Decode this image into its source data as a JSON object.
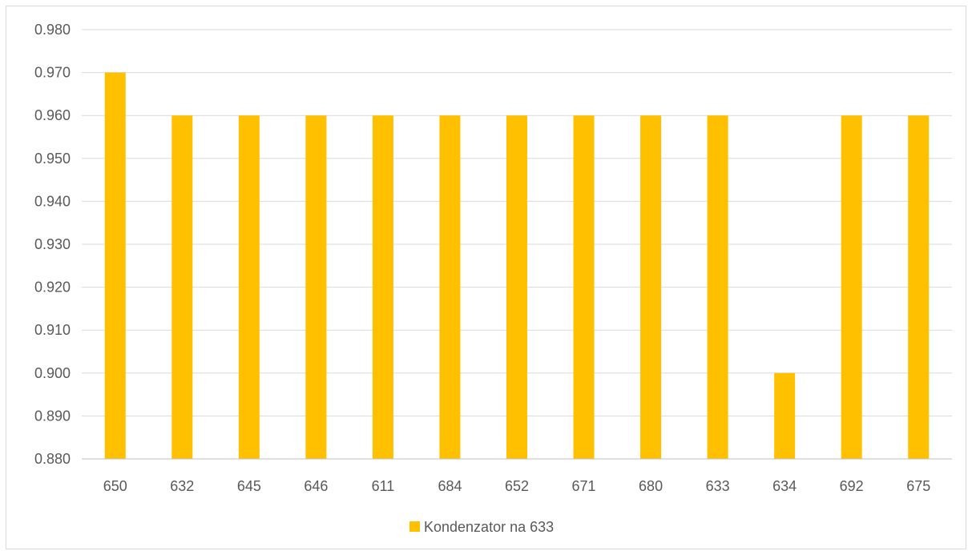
{
  "chart_data": {
    "type": "bar",
    "categories": [
      "650",
      "632",
      "645",
      "646",
      "611",
      "684",
      "652",
      "671",
      "680",
      "633",
      "634",
      "692",
      "675"
    ],
    "series": [
      {
        "name": "Kondenzator na 633",
        "values": [
          0.97,
          0.96,
          0.96,
          0.96,
          0.96,
          0.96,
          0.96,
          0.96,
          0.96,
          0.96,
          0.9,
          0.96,
          0.96
        ]
      }
    ],
    "ylim": [
      0.88,
      0.98
    ],
    "yticks": [
      "0.880",
      "0.890",
      "0.900",
      "0.910",
      "0.920",
      "0.930",
      "0.940",
      "0.950",
      "0.960",
      "0.970",
      "0.980"
    ],
    "grid": true,
    "legend_position": "bottom",
    "title": "",
    "xlabel": "",
    "ylabel": ""
  },
  "colors": {
    "bar": "#ffc000",
    "grid": "#d9d9d9",
    "axis": "#bfbfbf"
  }
}
